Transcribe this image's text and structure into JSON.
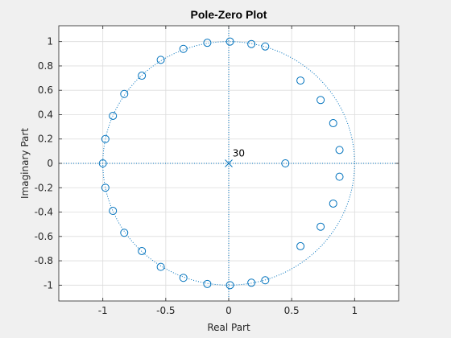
{
  "chart_data": {
    "type": "scatter",
    "title": "Pole-Zero Plot",
    "xlabel": "Real Part",
    "ylabel": "Imaginary Part",
    "xlim": [
      -1.35,
      1.35
    ],
    "ylim": [
      -1.13,
      1.13
    ],
    "xticks": [
      -1,
      -0.5,
      0,
      0.5,
      1
    ],
    "xtick_labels": [
      "-1",
      "-0.5",
      "0",
      "0.5",
      "1"
    ],
    "yticks": [
      -1,
      -0.8,
      -0.6,
      -0.4,
      -0.2,
      0,
      0.2,
      0.4,
      0.6,
      0.8,
      1
    ],
    "ytick_labels": [
      "-1",
      "-0.8",
      "-0.6",
      "-0.4",
      "-0.2",
      "0",
      "0.2",
      "0.4",
      "0.6",
      "0.8",
      "1"
    ],
    "grid": true,
    "unit_circle": true,
    "zeros": [
      {
        "x": 0.88,
        "y": 0.11
      },
      {
        "x": 0.88,
        "y": -0.11
      },
      {
        "x": 0.83,
        "y": 0.33
      },
      {
        "x": 0.83,
        "y": -0.33
      },
      {
        "x": 0.73,
        "y": 0.52
      },
      {
        "x": 0.73,
        "y": -0.52
      },
      {
        "x": 0.57,
        "y": 0.68
      },
      {
        "x": 0.57,
        "y": -0.68
      },
      {
        "x": 0.29,
        "y": 0.96
      },
      {
        "x": 0.29,
        "y": -0.96
      },
      {
        "x": 0.18,
        "y": 0.98
      },
      {
        "x": 0.18,
        "y": -0.98
      },
      {
        "x": 0.01,
        "y": 1.0
      },
      {
        "x": 0.01,
        "y": -1.0
      },
      {
        "x": -0.17,
        "y": 0.99
      },
      {
        "x": -0.17,
        "y": -0.99
      },
      {
        "x": -0.36,
        "y": 0.94
      },
      {
        "x": -0.36,
        "y": -0.94
      },
      {
        "x": -0.54,
        "y": 0.85
      },
      {
        "x": -0.54,
        "y": -0.85
      },
      {
        "x": -0.69,
        "y": 0.72
      },
      {
        "x": -0.69,
        "y": -0.72
      },
      {
        "x": -0.83,
        "y": 0.57
      },
      {
        "x": -0.83,
        "y": -0.57
      },
      {
        "x": -0.92,
        "y": 0.39
      },
      {
        "x": -0.92,
        "y": -0.39
      },
      {
        "x": -0.98,
        "y": 0.2
      },
      {
        "x": -0.98,
        "y": -0.2
      },
      {
        "x": -1.0,
        "y": 0.0
      },
      {
        "x": 0.45,
        "y": 0.0
      }
    ],
    "poles": [
      {
        "x": 0,
        "y": 0
      }
    ],
    "annotations": [
      {
        "text": "30",
        "x": 0.03,
        "y": 0.03
      }
    ],
    "colors": {
      "marker": "#0072bd",
      "axes_bg": "#ffffff",
      "figure_bg": "#f0f0f0",
      "grid": "#dcdcdc",
      "axis_line": "#262626"
    }
  }
}
